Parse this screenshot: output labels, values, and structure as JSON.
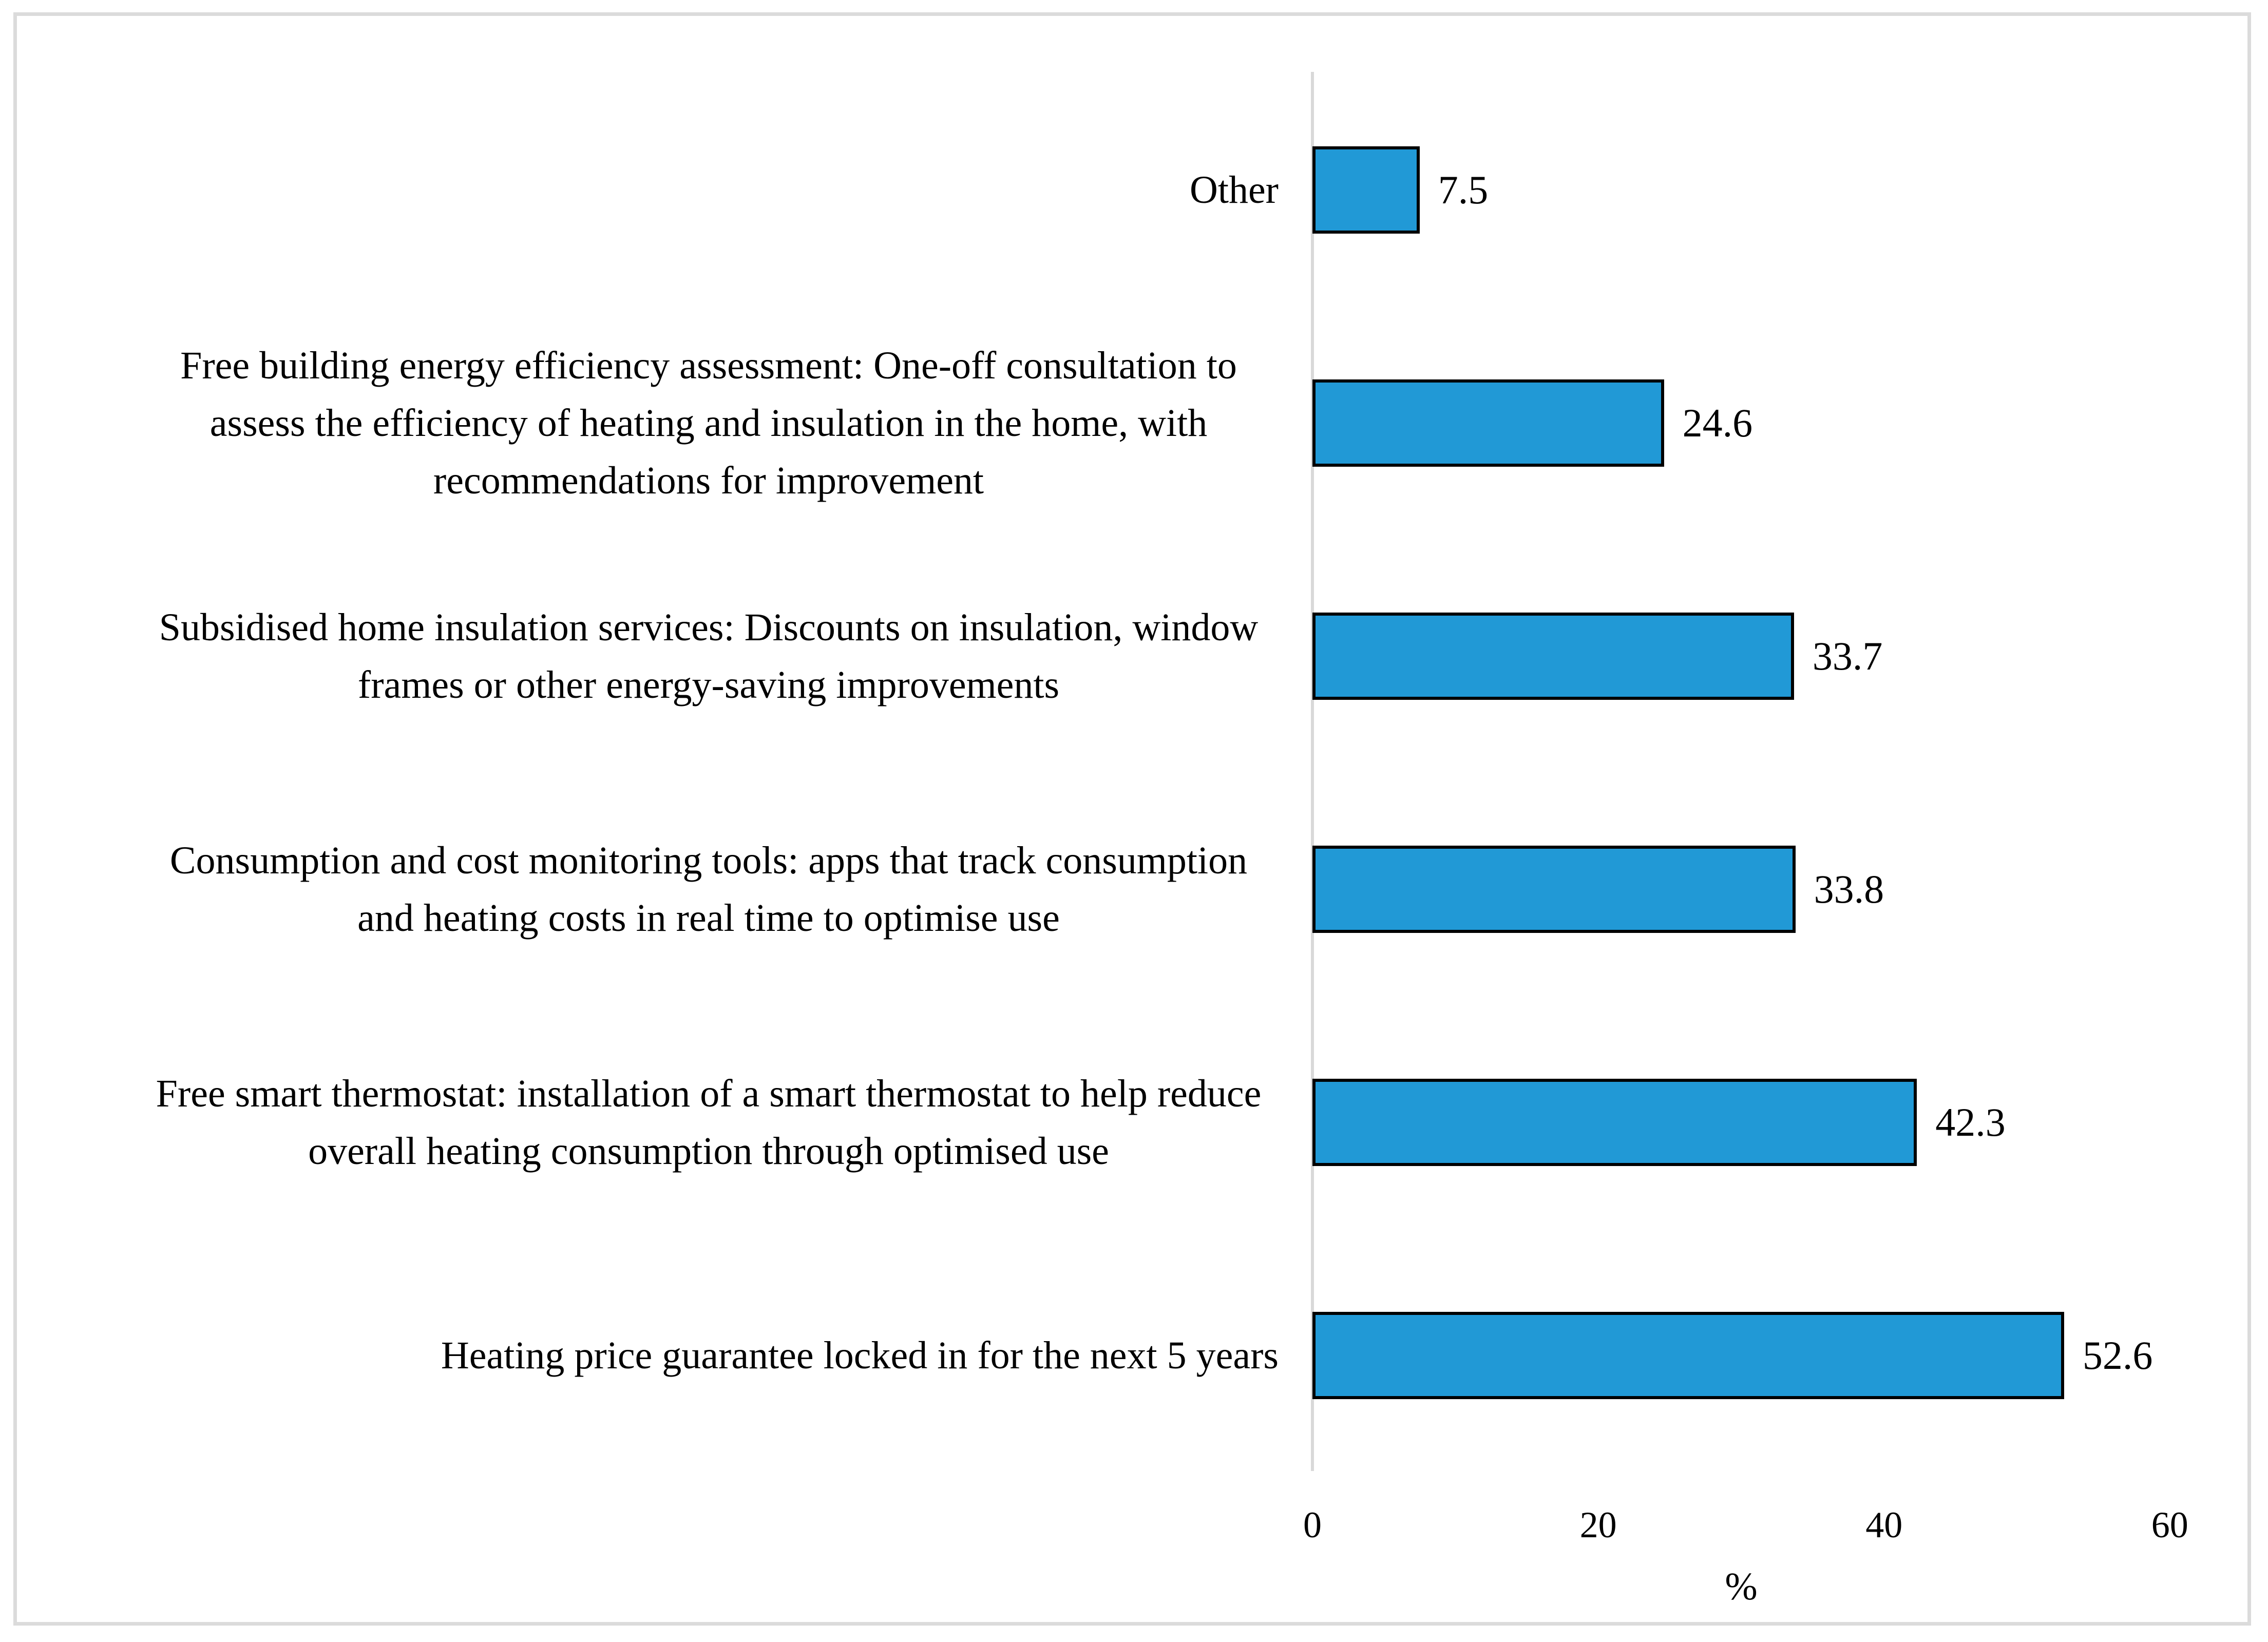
{
  "chart_data": {
    "type": "bar",
    "orientation": "horizontal",
    "title": "",
    "xlabel": "%",
    "ylabel": "",
    "xlim": [
      0,
      60
    ],
    "x_ticks": [
      "0",
      "20",
      "40",
      "60"
    ],
    "grid": "off",
    "legend": "none",
    "categories": [
      "Other",
      "Free building energy efficiency assessment: One-off consultation to assess the efficiency of heating and insulation in the home, with recommendations for improvement",
      "Subsidised home insulation services: Discounts on insulation, window frames or other energy-saving improvements",
      "Consumption and cost monitoring tools: apps that track consumption and heating costs in real time to optimise use",
      "Free smart thermostat: installation of a smart thermostat to help reduce overall heating consumption through optimised use",
      "Heating price guarantee locked in for the next 5 years"
    ],
    "values": [
      7.5,
      24.6,
      33.7,
      33.8,
      42.3,
      52.6
    ],
    "value_labels": [
      "7.5",
      "24.6",
      "33.7",
      "33.8",
      "42.3",
      "52.6"
    ],
    "colors": {
      "bar_fill": "#2199d6",
      "bar_border": "#000000",
      "axis_line": "#d9d9d9",
      "figure_border": "#dbdbdb",
      "text": "#000000"
    }
  }
}
